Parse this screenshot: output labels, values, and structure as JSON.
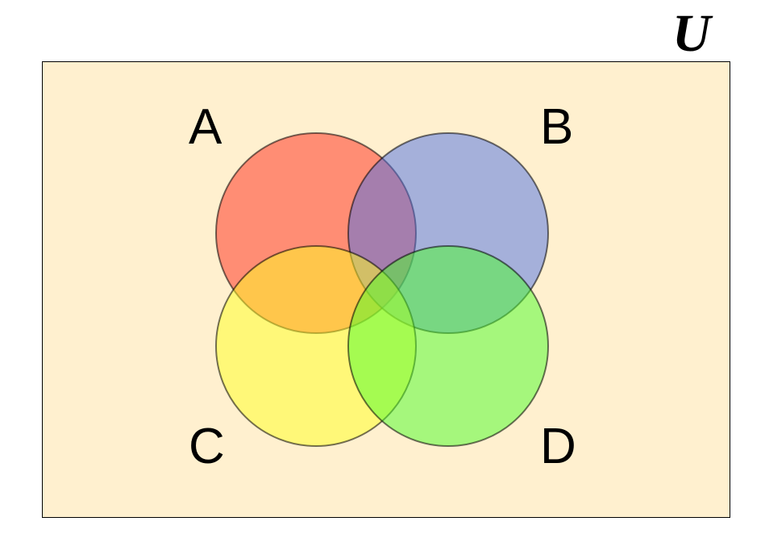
{
  "universe": {
    "label": "U",
    "fill": "#fff0cf"
  },
  "sets": [
    {
      "id": "a",
      "label": "A",
      "color": "#ff2a1a"
    },
    {
      "id": "b",
      "label": "B",
      "color": "#4c6fe6"
    },
    {
      "id": "c",
      "label": "C",
      "color": "#ffff22"
    },
    {
      "id": "d",
      "label": "D",
      "color": "#4cfe2a"
    }
  ]
}
